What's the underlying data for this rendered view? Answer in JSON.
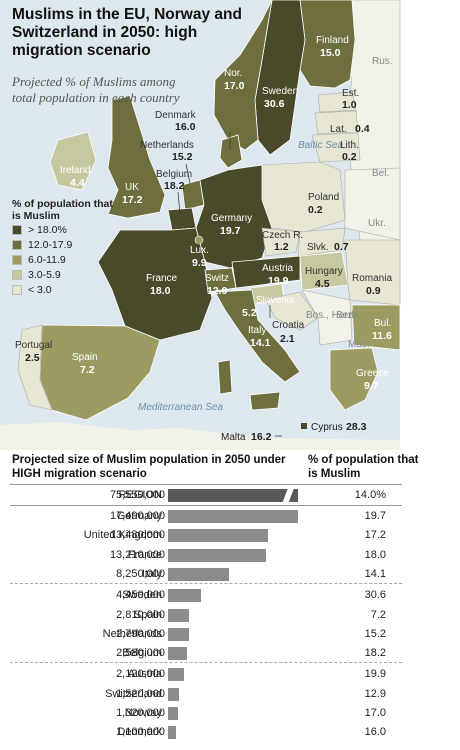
{
  "title": "Muslims in the EU, Norway and Switzerland in 2050: high migration scenario",
  "subtitle": "Projected % of Muslims among total population in each country",
  "legend": {
    "title": "% of population that is Muslim",
    "items": [
      {
        "label": "> 18.0%",
        "color": "#4a4a2a"
      },
      {
        "label": "12.0-17.9",
        "color": "#6e6e3e"
      },
      {
        "label": "6.0-11.9",
        "color": "#9c9c62"
      },
      {
        "label": "3.0-5.9",
        "color": "#c8c8a0"
      },
      {
        "label": "< 3.0",
        "color": "#e6e6d2"
      }
    ]
  },
  "seas": {
    "baltic": "Baltic Sea",
    "med": "Mediterranean Sea"
  },
  "map_labels": {
    "finland": {
      "name": "Finland",
      "value": "15.0"
    },
    "rus": {
      "name": "Rus."
    },
    "norway": {
      "name": "Nor.",
      "value": "17.0"
    },
    "sweden": {
      "name": "Sweden",
      "value": "30.6"
    },
    "estonia": {
      "name": "Est.",
      "value": "1.0"
    },
    "latvia": {
      "name": "Lat.",
      "value": "0.4"
    },
    "lithuania": {
      "name": "Lith.",
      "value": "0.2"
    },
    "belarus": {
      "name": "Bel."
    },
    "ukraine": {
      "name": "Ukr."
    },
    "denmark": {
      "name": "Denmark",
      "value": "16.0"
    },
    "ireland": {
      "name": "Ireland",
      "value": "4.4"
    },
    "uk": {
      "name": "UK",
      "value": "17.2"
    },
    "netherlands": {
      "name": "Netherlands",
      "value": "15.2"
    },
    "belgium": {
      "name": "Belgium",
      "value": "18.2"
    },
    "germany": {
      "name": "Germany",
      "value": "19.7"
    },
    "poland": {
      "name": "Poland",
      "value": "0.2"
    },
    "czech": {
      "name": "Czech R.",
      "value": "1.2"
    },
    "slovakia": {
      "name": "Slvk.",
      "value": "0.7"
    },
    "lux": {
      "name": "Lux.",
      "value": "9.9"
    },
    "france": {
      "name": "France",
      "value": "18.0"
    },
    "switz": {
      "name": "Switz",
      "value": "12.9"
    },
    "austria": {
      "name": "Austria",
      "value": "19.9"
    },
    "hungary": {
      "name": "Hungary",
      "value": "4.5"
    },
    "romania": {
      "name": "Romania",
      "value": "0.9"
    },
    "slovenia": {
      "name": "Slovenia",
      "value": "5.2"
    },
    "croatia": {
      "name": "Croatia",
      "value": "2.1"
    },
    "serbia": {
      "name": "Serb."
    },
    "bosnia": {
      "name": "Bos.,\nHerz."
    },
    "mace": {
      "name": "Mac."
    },
    "bulgaria": {
      "name": "Bul.",
      "value": "11.6"
    },
    "italy": {
      "name": "Italy",
      "value": "14.1"
    },
    "greece": {
      "name": "Greece",
      "value": "9.7"
    },
    "portugal": {
      "name": "Portugal",
      "value": "2.5"
    },
    "spain": {
      "name": "Spain",
      "value": "7.2"
    },
    "cyprus": {
      "name": "Cyprus",
      "value": "28.3"
    },
    "malta": {
      "name": "Malta",
      "value": "16.2"
    }
  },
  "table": {
    "header_left": "Projected size of Muslim population in 2050 under HIGH migration scenario",
    "header_right": "% of population that is Muslim",
    "rows": [
      {
        "name": "REGION",
        "population": "75,550,000",
        "pop_value": 75550000,
        "pct": "14.0%"
      },
      {
        "name": "Germany",
        "population": "17,490,000",
        "pop_value": 17490000,
        "pct": "19.7"
      },
      {
        "name": "United Kingdom",
        "population": "13,480,000",
        "pop_value": 13480000,
        "pct": "17.2"
      },
      {
        "name": "France",
        "population": "13,210,000",
        "pop_value": 13210000,
        "pct": "18.0"
      },
      {
        "name": "Italy",
        "population": "8,250,000",
        "pop_value": 8250000,
        "pct": "14.1"
      },
      {
        "name": "Sweden",
        "population": "4,450,000",
        "pop_value": 4450000,
        "pct": "30.6"
      },
      {
        "name": "Spain",
        "population": "2,810,000",
        "pop_value": 2810000,
        "pct": "7.2"
      },
      {
        "name": "Netherlands",
        "population": "2,790,000",
        "pop_value": 2790000,
        "pct": "15.2"
      },
      {
        "name": "Belgium",
        "population": "2,580,000",
        "pop_value": 2580000,
        "pct": "18.2"
      },
      {
        "name": "Austria",
        "population": "2,120,000",
        "pop_value": 2120000,
        "pct": "19.9"
      },
      {
        "name": "Switzerland",
        "population": "1,520,000",
        "pop_value": 1520000,
        "pct": "12.9"
      },
      {
        "name": "Norway",
        "population": "1,320,000",
        "pop_value": 1320000,
        "pct": "17.0"
      },
      {
        "name": "Denmark",
        "population": "1,100,000",
        "pop_value": 1100000,
        "pct": "16.0"
      }
    ]
  }
}
